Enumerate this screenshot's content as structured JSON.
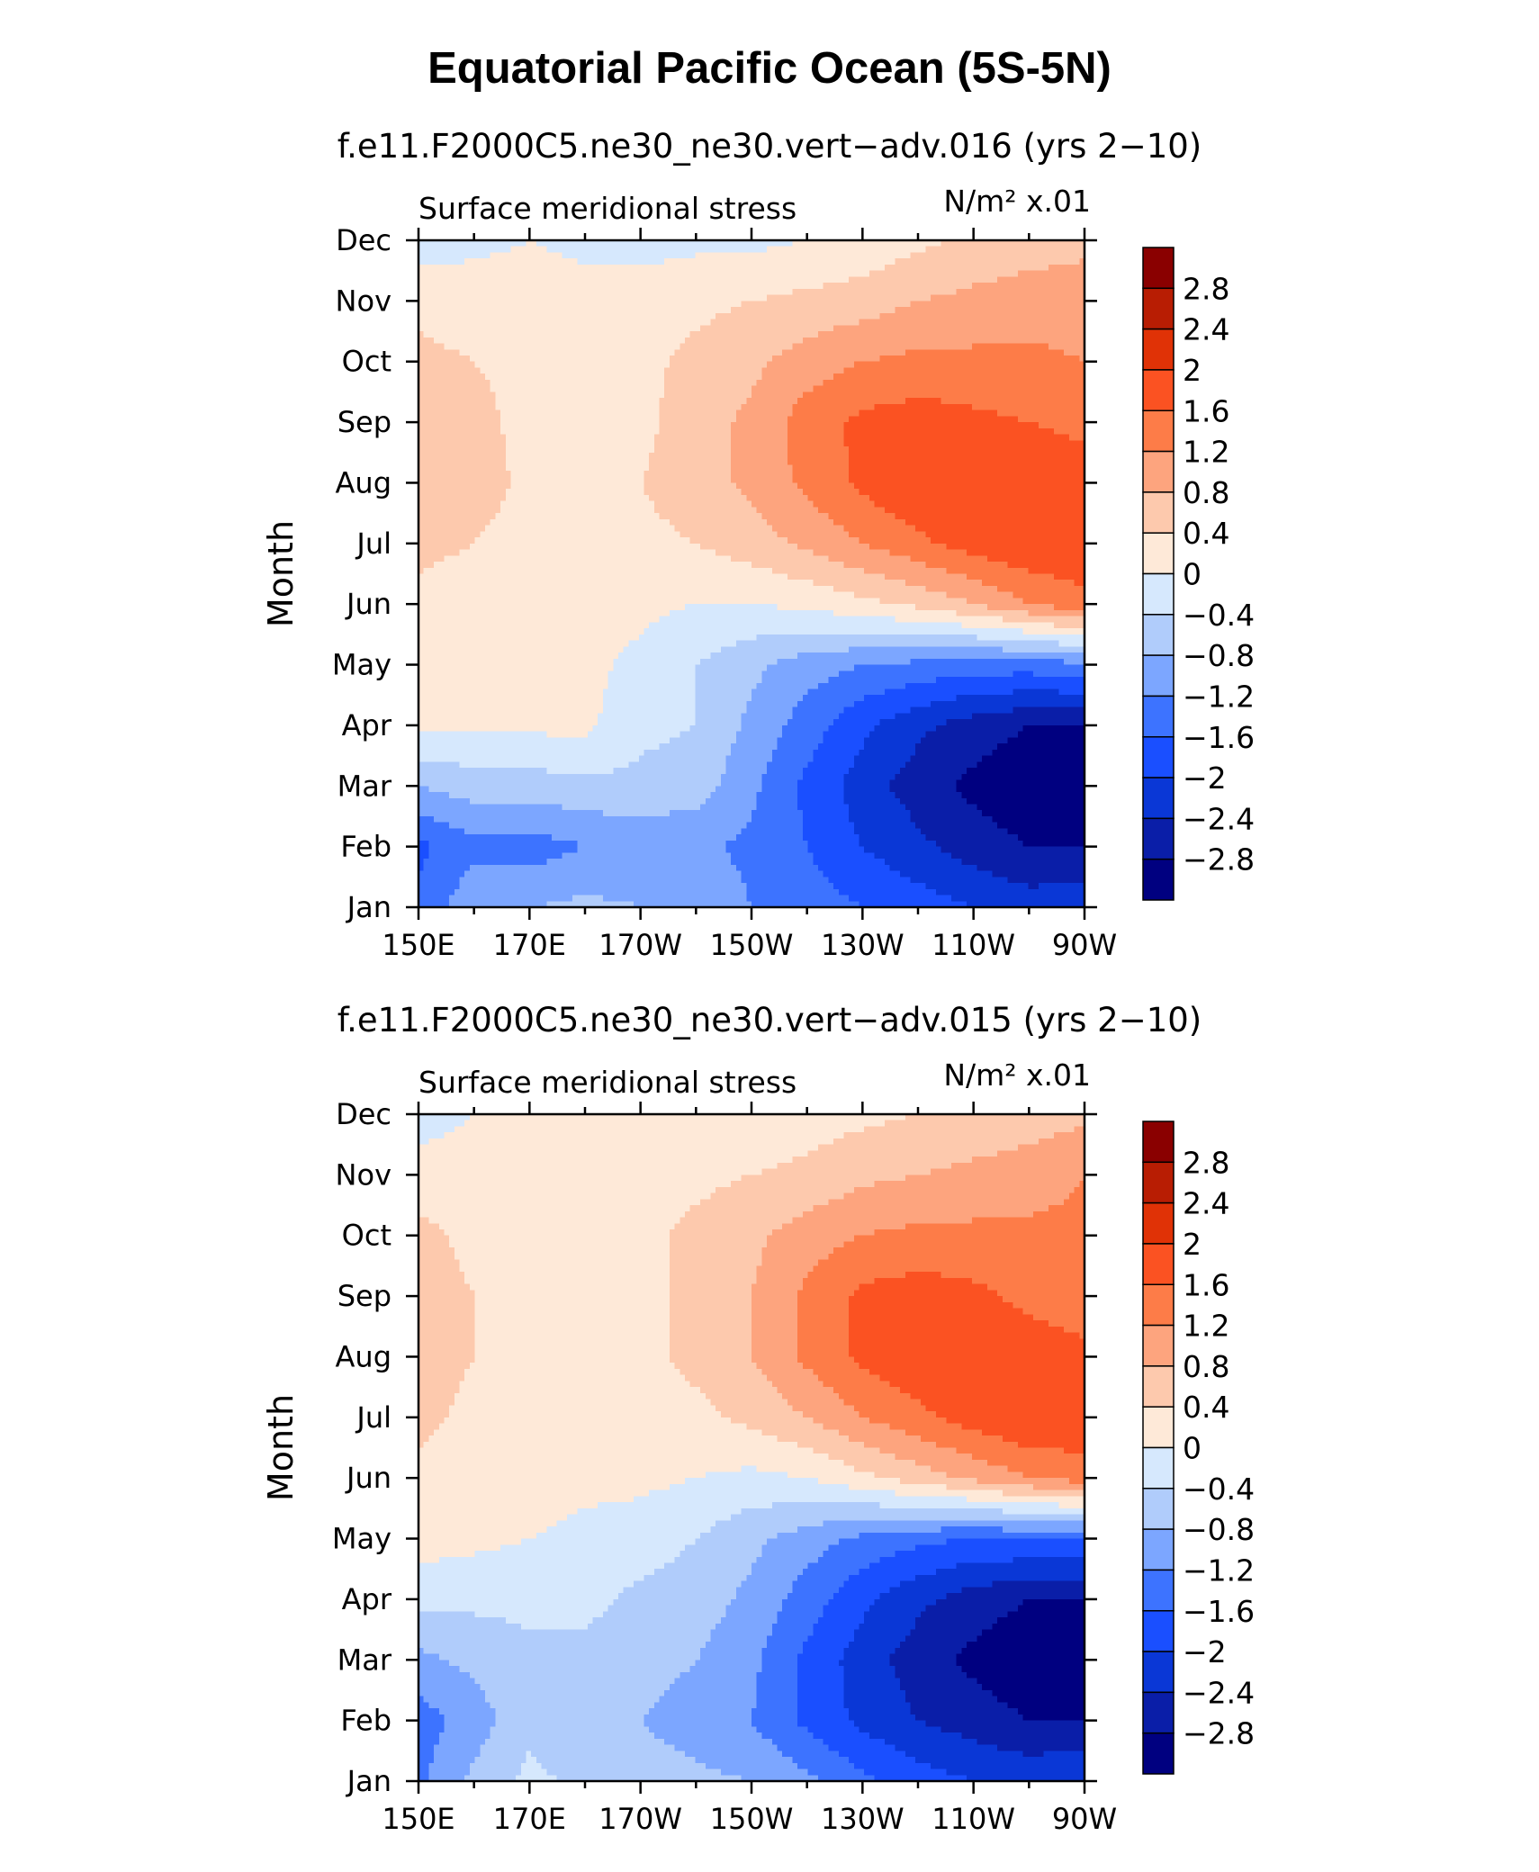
{
  "title": "Equatorial Pacific Ocean (5S-5N)",
  "palette": {
    "bins": [
      -3.2,
      -2.8,
      -2.4,
      -2.0,
      -1.6,
      -1.2,
      -0.8,
      -0.4,
      0,
      0.4,
      0.8,
      1.2,
      1.6,
      2.0,
      2.4,
      2.8,
      3.2
    ],
    "colors": [
      "#000080",
      "#0a1ea8",
      "#0a37d6",
      "#1a4fff",
      "#3d73ff",
      "#7ca6ff",
      "#b0ccfb",
      "#d6e8fd",
      "#fee9d8",
      "#fdc9ad",
      "#fda47e",
      "#fd7c48",
      "#fb5222",
      "#e03206",
      "#b81d03",
      "#8a0000"
    ]
  },
  "chart_data": [
    {
      "type": "heatmap",
      "name": "panel-016",
      "title": "f.e11.F2000C5.ne30_ne30.vert−adv.016 (yrs 2−10)",
      "left_label": "Surface meridional stress",
      "units": "N/m² x.01",
      "ylabel": "Month",
      "x_ticks": [
        "150E",
        "170E",
        "170W",
        "150W",
        "130W",
        "110W",
        "90W"
      ],
      "y_ticks": [
        "Jan",
        "Feb",
        "Mar",
        "Apr",
        "May",
        "Jun",
        "Jul",
        "Aug",
        "Sep",
        "Oct",
        "Nov",
        "Dec"
      ],
      "colorbar_labels": [
        "2.8",
        "2.4",
        "2",
        "1.6",
        "1.2",
        "0.8",
        "0.4",
        "0",
        "−0.4",
        "−0.8",
        "−1.2",
        "−1.6",
        "−2",
        "−2.4",
        "−2.8"
      ],
      "x_lon_east": [
        150,
        160,
        170,
        180,
        190,
        200,
        210,
        220,
        230,
        240,
        250,
        260,
        270
      ],
      "months": [
        "Jan",
        "Feb",
        "Mar",
        "Apr",
        "May",
        "Jun",
        "Jul",
        "Aug",
        "Sep",
        "Oct",
        "Nov",
        "Dec"
      ],
      "values": [
        [
          -1.5,
          -0.9,
          -0.8,
          -0.7,
          -0.8,
          -0.9,
          -1.2,
          -1.4,
          -1.6,
          -1.8,
          -2.0,
          -2.2,
          -2.1
        ],
        [
          -1.7,
          -1.3,
          -1.4,
          -1.2,
          -1.1,
          -1.1,
          -1.3,
          -1.6,
          -2.0,
          -2.3,
          -2.6,
          -2.8,
          -2.8
        ],
        [
          -0.8,
          -0.6,
          -0.6,
          -0.5,
          -0.5,
          -0.6,
          -1.1,
          -1.7,
          -2.2,
          -2.6,
          -2.9,
          -3.1,
          -3.1
        ],
        [
          0.1,
          0.05,
          0.1,
          0.1,
          -0.3,
          -0.4,
          -0.9,
          -1.4,
          -1.9,
          -2.3,
          -2.6,
          -2.8,
          -2.8
        ],
        [
          0.2,
          0.2,
          0.1,
          0.1,
          -0.1,
          -0.4,
          -0.7,
          -1.0,
          -1.2,
          -1.3,
          -1.4,
          -1.4,
          -1.3
        ],
        [
          0.3,
          0.2,
          0.2,
          0.15,
          0.1,
          0.0,
          0.0,
          0.1,
          0.3,
          0.5,
          0.8,
          1.2,
          1.5
        ],
        [
          0.5,
          0.4,
          0.3,
          0.2,
          0.3,
          0.4,
          0.6,
          0.9,
          1.2,
          1.5,
          1.8,
          1.95,
          1.9
        ],
        [
          0.6,
          0.5,
          0.35,
          0.3,
          0.4,
          0.6,
          0.9,
          1.3,
          1.7,
          2.0,
          1.95,
          1.9,
          1.8
        ],
        [
          0.6,
          0.5,
          0.3,
          0.3,
          0.3,
          0.6,
          0.9,
          1.4,
          1.7,
          1.8,
          1.7,
          1.6,
          1.5
        ],
        [
          0.5,
          0.4,
          0.3,
          0.2,
          0.3,
          0.5,
          0.7,
          1.0,
          1.2,
          1.3,
          1.3,
          1.3,
          1.2
        ],
        [
          0.3,
          0.2,
          0.2,
          0.15,
          0.2,
          0.3,
          0.4,
          0.5,
          0.6,
          0.8,
          0.9,
          1.0,
          1.0
        ],
        [
          -0.2,
          -0.1,
          0.0,
          -0.1,
          -0.15,
          -0.1,
          -0.1,
          0.0,
          0.1,
          0.3,
          0.5,
          0.6,
          0.7
        ]
      ]
    },
    {
      "type": "heatmap",
      "name": "panel-015",
      "title": "f.e11.F2000C5.ne30_ne30.vert−adv.015 (yrs 2−10)",
      "left_label": "Surface meridional stress",
      "units": "N/m² x.01",
      "ylabel": "Month",
      "x_ticks": [
        "150E",
        "170E",
        "170W",
        "150W",
        "130W",
        "110W",
        "90W"
      ],
      "y_ticks": [
        "Jan",
        "Feb",
        "Mar",
        "Apr",
        "May",
        "Jun",
        "Jul",
        "Aug",
        "Sep",
        "Oct",
        "Nov",
        "Dec"
      ],
      "colorbar_labels": [
        "2.8",
        "2.4",
        "2",
        "1.6",
        "1.2",
        "0.8",
        "0.4",
        "0",
        "−0.4",
        "−0.8",
        "−1.2",
        "−1.6",
        "−2",
        "−2.4",
        "−2.8"
      ],
      "x_lon_east": [
        150,
        160,
        170,
        180,
        190,
        200,
        210,
        220,
        230,
        240,
        250,
        260,
        270
      ],
      "months": [
        "Jan",
        "Feb",
        "Mar",
        "Apr",
        "May",
        "Jun",
        "Jul",
        "Aug",
        "Sep",
        "Oct",
        "Nov",
        "Dec"
      ],
      "values": [
        [
          -1.3,
          -0.7,
          -0.3,
          -0.5,
          -0.6,
          -0.7,
          -0.8,
          -1.1,
          -1.5,
          -1.8,
          -2.0,
          -2.1,
          -2.0
        ],
        [
          -1.4,
          -1.0,
          -0.5,
          -0.7,
          -0.8,
          -1.0,
          -1.2,
          -1.7,
          -2.1,
          -2.4,
          -2.6,
          -2.8,
          -2.8
        ],
        [
          -0.9,
          -0.7,
          -0.5,
          -0.5,
          -0.6,
          -0.8,
          -1.1,
          -1.7,
          -2.2,
          -2.6,
          -2.9,
          -3.1,
          -3.1
        ],
        [
          -0.3,
          -0.3,
          -0.3,
          -0.3,
          -0.5,
          -0.6,
          -0.9,
          -1.4,
          -1.9,
          -2.3,
          -2.6,
          -2.8,
          -2.8
        ],
        [
          0.2,
          0.1,
          0.0,
          -0.1,
          -0.2,
          -0.4,
          -0.7,
          -1.0,
          -1.3,
          -1.5,
          -1.6,
          -1.6,
          -1.6
        ],
        [
          0.3,
          0.2,
          0.2,
          0.1,
          0.1,
          0.0,
          -0.1,
          0.0,
          0.3,
          0.6,
          0.9,
          1.2,
          1.4
        ],
        [
          0.5,
          0.3,
          0.2,
          0.2,
          0.2,
          0.3,
          0.5,
          0.8,
          1.2,
          1.5,
          1.8,
          2.0,
          1.9
        ],
        [
          0.6,
          0.4,
          0.3,
          0.2,
          0.3,
          0.5,
          0.8,
          1.3,
          1.7,
          1.9,
          1.9,
          1.8,
          1.7
        ],
        [
          0.6,
          0.4,
          0.3,
          0.2,
          0.3,
          0.5,
          0.8,
          1.3,
          1.7,
          1.8,
          1.7,
          1.5,
          1.4
        ],
        [
          0.5,
          0.3,
          0.2,
          0.2,
          0.3,
          0.5,
          0.7,
          1.0,
          1.2,
          1.3,
          1.3,
          1.3,
          1.3
        ],
        [
          0.2,
          0.2,
          0.1,
          0.1,
          0.2,
          0.3,
          0.4,
          0.5,
          0.7,
          0.8,
          0.9,
          1.0,
          1.2
        ],
        [
          -0.2,
          0.0,
          0.0,
          0.1,
          0.1,
          0.1,
          0.1,
          0.2,
          0.3,
          0.4,
          0.5,
          0.6,
          0.7
        ]
      ]
    }
  ]
}
